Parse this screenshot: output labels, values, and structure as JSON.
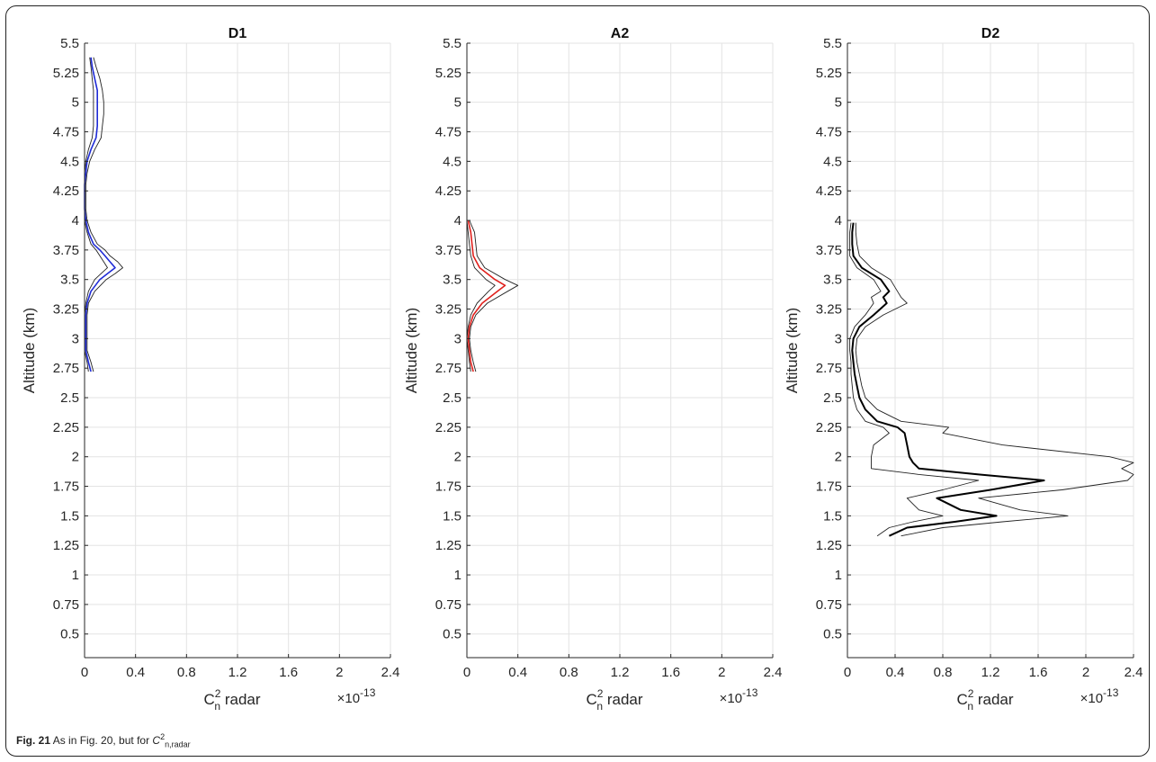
{
  "caption": {
    "fig_label": "Fig. 21",
    "text_before": "As in Fig. 20, but for ",
    "symbol": "C",
    "symbol_sup": "2",
    "symbol_sub": "n,radar"
  },
  "chart_data": [
    {
      "type": "line",
      "title": "D1",
      "ylabel": "Altitude (km)",
      "xlabel": "C",
      "xlabel_sup": "2",
      "xlabel_sub": "n",
      "xlabel_suffix": " radar",
      "x_multiplier": "×10",
      "x_multiplier_exp": "-13",
      "xlim": [
        0,
        2.4
      ],
      "ylim": [
        0.3,
        5.5
      ],
      "xticks": [
        0,
        0.4,
        0.8,
        1.2,
        1.6,
        2,
        2.4
      ],
      "xtick_labels": [
        "0",
        "0.4",
        "0.8",
        "1.2",
        "1.6",
        "2",
        "2.4"
      ],
      "yticks": [
        0.5,
        0.75,
        1,
        1.25,
        1.5,
        1.75,
        2,
        2.25,
        2.5,
        2.75,
        3,
        3.25,
        3.5,
        3.75,
        4,
        4.25,
        4.5,
        4.75,
        5,
        5.25,
        5.5
      ],
      "ytick_labels": [
        "0.5",
        "0.75",
        "1",
        "1.25",
        "1.5",
        "1.75",
        "2",
        "2.25",
        "2.5",
        "2.75",
        "3",
        "3.25",
        "3.5",
        "3.75",
        "4",
        "4.25",
        "4.5",
        "4.75",
        "5",
        "5.25",
        "5.5"
      ],
      "grid": true,
      "series": [
        {
          "color": "#1f2bd6",
          "width": 1.6,
          "y": [
            2.72,
            2.8,
            2.9,
            3.0,
            3.1,
            3.2,
            3.3,
            3.4,
            3.5,
            3.55,
            3.6,
            3.65,
            3.7,
            3.75,
            3.8,
            3.9,
            4.0,
            4.1,
            4.2,
            4.3,
            4.4,
            4.5,
            4.6,
            4.7,
            4.8,
            4.9,
            5.0,
            5.1,
            5.2,
            5.3,
            5.38
          ],
          "x": [
            0.05,
            0.03,
            0.01,
            0.01,
            0.01,
            0.01,
            0.02,
            0.05,
            0.12,
            0.18,
            0.24,
            0.2,
            0.16,
            0.12,
            0.07,
            0.03,
            0.01,
            0.0,
            0.0,
            0.0,
            0.01,
            0.02,
            0.05,
            0.09,
            0.1,
            0.1,
            0.1,
            0.1,
            0.08,
            0.06,
            0.05
          ]
        },
        {
          "color": "#222222",
          "width": 0.9,
          "y": [
            2.72,
            2.8,
            2.9,
            3.0,
            3.1,
            3.2,
            3.3,
            3.4,
            3.5,
            3.55,
            3.6,
            3.65,
            3.7,
            3.75,
            3.8,
            3.9,
            4.0,
            4.1,
            4.2,
            4.3,
            4.4,
            4.5,
            4.6,
            4.7,
            4.8,
            4.9,
            5.0,
            5.1,
            5.2,
            5.3,
            5.38
          ],
          "x": [
            0.07,
            0.05,
            0.02,
            0.02,
            0.02,
            0.02,
            0.03,
            0.08,
            0.17,
            0.24,
            0.3,
            0.26,
            0.2,
            0.16,
            0.1,
            0.05,
            0.02,
            0.01,
            0.01,
            0.01,
            0.02,
            0.04,
            0.08,
            0.13,
            0.14,
            0.15,
            0.15,
            0.14,
            0.12,
            0.09,
            0.07
          ]
        },
        {
          "color": "#222222",
          "width": 0.9,
          "y": [
            2.72,
            2.8,
            2.9,
            3.0,
            3.1,
            3.2,
            3.3,
            3.4,
            3.5,
            3.55,
            3.6,
            3.65,
            3.7,
            3.75,
            3.8,
            3.9,
            4.0,
            4.1,
            4.2,
            4.3,
            4.4,
            4.5,
            4.6,
            4.7,
            4.8,
            4.9,
            5.0,
            5.1,
            5.2,
            5.3,
            5.38
          ],
          "x": [
            0.03,
            0.02,
            0.0,
            0.0,
            0.0,
            0.0,
            0.01,
            0.03,
            0.08,
            0.13,
            0.18,
            0.15,
            0.12,
            0.09,
            0.05,
            0.02,
            0.0,
            0.0,
            0.0,
            0.0,
            0.0,
            0.01,
            0.03,
            0.06,
            0.07,
            0.07,
            0.07,
            0.07,
            0.06,
            0.05,
            0.04
          ]
        }
      ]
    },
    {
      "type": "line",
      "title": "A2",
      "ylabel": "Altitude (km)",
      "xlabel": "C",
      "xlabel_sup": "2",
      "xlabel_sub": "n",
      "xlabel_suffix": " radar",
      "x_multiplier": "×10",
      "x_multiplier_exp": "-13",
      "xlim": [
        0,
        2.4
      ],
      "ylim": [
        0.3,
        5.5
      ],
      "xticks": [
        0,
        0.4,
        0.8,
        1.2,
        1.6,
        2,
        2.4
      ],
      "xtick_labels": [
        "0",
        "0.4",
        "0.8",
        "1.2",
        "1.6",
        "2",
        "2.4"
      ],
      "yticks": [
        0.5,
        0.75,
        1,
        1.25,
        1.5,
        1.75,
        2,
        2.25,
        2.5,
        2.75,
        3,
        3.25,
        3.5,
        3.75,
        4,
        4.25,
        4.5,
        4.75,
        5,
        5.25,
        5.5
      ],
      "ytick_labels": [
        "0.5",
        "0.75",
        "1",
        "1.25",
        "1.5",
        "1.75",
        "2",
        "2.25",
        "2.5",
        "2.75",
        "3",
        "3.25",
        "3.5",
        "3.75",
        "4",
        "4.25",
        "4.5",
        "4.75",
        "5",
        "5.25",
        "5.5"
      ],
      "grid": true,
      "series": [
        {
          "color": "#e0201c",
          "width": 1.6,
          "y": [
            2.72,
            2.8,
            2.9,
            3.0,
            3.1,
            3.2,
            3.3,
            3.4,
            3.45,
            3.5,
            3.6,
            3.7,
            3.8,
            3.9,
            4.0
          ],
          "x": [
            0.05,
            0.03,
            0.02,
            0.01,
            0.02,
            0.05,
            0.12,
            0.24,
            0.3,
            0.22,
            0.1,
            0.05,
            0.04,
            0.03,
            0.01
          ]
        },
        {
          "color": "#222222",
          "width": 0.9,
          "y": [
            2.72,
            2.8,
            2.9,
            3.0,
            3.1,
            3.2,
            3.3,
            3.4,
            3.45,
            3.5,
            3.6,
            3.7,
            3.8,
            3.9,
            4.0
          ],
          "x": [
            0.07,
            0.05,
            0.03,
            0.02,
            0.03,
            0.07,
            0.16,
            0.32,
            0.4,
            0.3,
            0.14,
            0.08,
            0.07,
            0.06,
            0.02
          ]
        },
        {
          "color": "#222222",
          "width": 0.9,
          "y": [
            2.72,
            2.8,
            2.9,
            3.0,
            3.1,
            3.2,
            3.3,
            3.4,
            3.45,
            3.5,
            3.6,
            3.7,
            3.8,
            3.9,
            4.0
          ],
          "x": [
            0.03,
            0.02,
            0.01,
            0.0,
            0.01,
            0.03,
            0.08,
            0.17,
            0.22,
            0.15,
            0.06,
            0.03,
            0.02,
            0.01,
            0.0
          ]
        }
      ]
    },
    {
      "type": "line",
      "title": "D2",
      "ylabel": "Altitude (km)",
      "xlabel": "C",
      "xlabel_sup": "2",
      "xlabel_sub": "n",
      "xlabel_suffix": " radar",
      "x_multiplier": "×10",
      "x_multiplier_exp": "-13",
      "xlim": [
        0,
        2.4
      ],
      "ylim": [
        0.3,
        5.5
      ],
      "xticks": [
        0,
        0.4,
        0.8,
        1.2,
        1.6,
        2,
        2.4
      ],
      "xtick_labels": [
        "0",
        "0.4",
        "0.8",
        "1.2",
        "1.6",
        "2",
        "2.4"
      ],
      "yticks": [
        0.5,
        0.75,
        1,
        1.25,
        1.5,
        1.75,
        2,
        2.25,
        2.5,
        2.75,
        3,
        3.25,
        3.5,
        3.75,
        4,
        4.25,
        4.5,
        4.75,
        5,
        5.25,
        5.5
      ],
      "ytick_labels": [
        "0.5",
        "0.75",
        "1",
        "1.25",
        "1.5",
        "1.75",
        "2",
        "2.25",
        "2.5",
        "2.75",
        "3",
        "3.25",
        "3.5",
        "3.75",
        "4",
        "4.25",
        "4.5",
        "4.75",
        "5",
        "5.25",
        "5.5"
      ],
      "grid": true,
      "series": [
        {
          "color": "#000000",
          "width": 2.0,
          "y": [
            1.33,
            1.4,
            1.45,
            1.5,
            1.55,
            1.65,
            1.72,
            1.8,
            1.85,
            1.9,
            1.95,
            2.0,
            2.1,
            2.2,
            2.25,
            2.3,
            2.4,
            2.5,
            2.6,
            2.7,
            2.8,
            2.9,
            3.0,
            3.1,
            3.2,
            3.3,
            3.35,
            3.4,
            3.5,
            3.6,
            3.7,
            3.8,
            3.9,
            3.98
          ],
          "x": [
            0.35,
            0.5,
            0.9,
            1.25,
            0.95,
            0.75,
            1.2,
            1.65,
            1.1,
            0.6,
            0.55,
            0.52,
            0.5,
            0.48,
            0.42,
            0.25,
            0.15,
            0.1,
            0.08,
            0.06,
            0.05,
            0.04,
            0.05,
            0.1,
            0.22,
            0.33,
            0.3,
            0.35,
            0.28,
            0.12,
            0.05,
            0.04,
            0.04,
            0.05
          ]
        },
        {
          "color": "#222222",
          "width": 0.9,
          "y": [
            1.33,
            1.4,
            1.45,
            1.5,
            1.55,
            1.65,
            1.72,
            1.8,
            1.85,
            1.9,
            1.95,
            2.0,
            2.1,
            2.2,
            2.25,
            2.3,
            2.4,
            2.5,
            2.6,
            2.7,
            2.8,
            2.9,
            3.0,
            3.1,
            3.2,
            3.3,
            3.35,
            3.4,
            3.5,
            3.6,
            3.7,
            3.8,
            3.9,
            3.98
          ],
          "x": [
            0.45,
            0.8,
            1.3,
            1.85,
            1.45,
            1.1,
            1.8,
            2.35,
            2.4,
            2.3,
            2.4,
            2.2,
            1.3,
            0.8,
            0.85,
            0.45,
            0.25,
            0.15,
            0.12,
            0.1,
            0.08,
            0.07,
            0.08,
            0.15,
            0.3,
            0.5,
            0.45,
            0.42,
            0.36,
            0.2,
            0.1,
            0.08,
            0.07,
            0.07
          ]
        },
        {
          "color": "#222222",
          "width": 0.9,
          "y": [
            1.33,
            1.4,
            1.45,
            1.5,
            1.55,
            1.65,
            1.72,
            1.8,
            1.85,
            1.9,
            1.95,
            2.0,
            2.1,
            2.2,
            2.25,
            2.3,
            2.4,
            2.5,
            2.6,
            2.7,
            2.8,
            2.9,
            3.0,
            3.1,
            3.2,
            3.3,
            3.35,
            3.4,
            3.5,
            3.6,
            3.7,
            3.8,
            3.9,
            3.98
          ],
          "x": [
            0.25,
            0.35,
            0.55,
            0.8,
            0.6,
            0.5,
            0.8,
            1.1,
            0.6,
            0.2,
            0.2,
            0.2,
            0.22,
            0.35,
            0.3,
            0.15,
            0.08,
            0.05,
            0.04,
            0.03,
            0.03,
            0.02,
            0.02,
            0.06,
            0.15,
            0.22,
            0.2,
            0.28,
            0.22,
            0.08,
            0.02,
            0.02,
            0.02,
            0.03
          ]
        }
      ]
    }
  ]
}
